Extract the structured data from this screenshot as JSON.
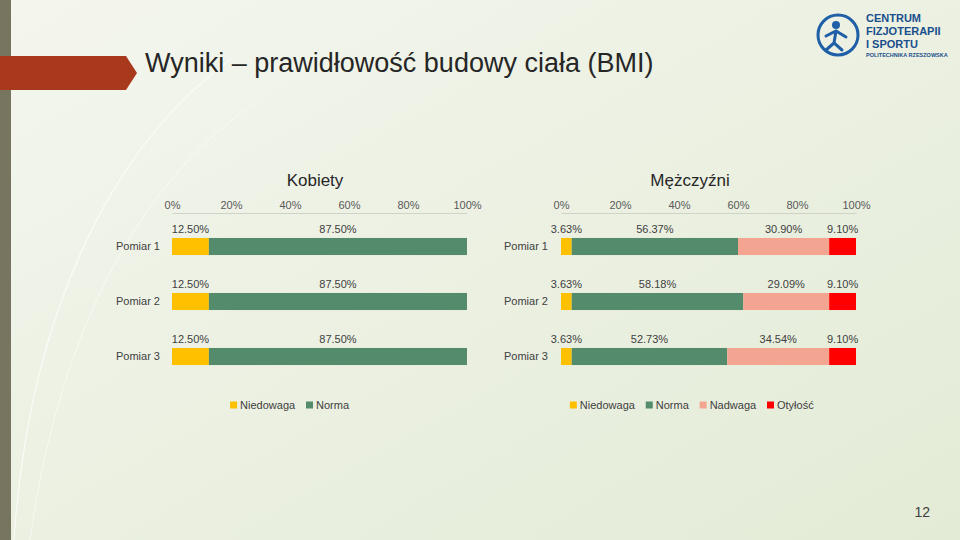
{
  "header": {
    "title": "Wyniki – prawidłowość budowy ciała (BMI)",
    "logo_lines": [
      "CENTRUM",
      "FIZJOTERAPII",
      "I SPORTU"
    ],
    "logo_subtitle": "POLITECHNIKA RZESZOWSKA"
  },
  "footer": {
    "page_number": "12"
  },
  "chart_data": [
    {
      "type": "bar",
      "title": "Kobiety",
      "orientation": "horizontal",
      "stacked": true,
      "data_labels": true,
      "legend": "bottom",
      "grid": false,
      "categories": [
        "Pomiar 1",
        "Pomiar 2",
        "Pomiar 3"
      ],
      "xlim": [
        0,
        100
      ],
      "xticks": [
        {
          "value": 0,
          "label": "0%"
        },
        {
          "value": 20,
          "label": "20%"
        },
        {
          "value": 40,
          "label": "40%"
        },
        {
          "value": 60,
          "label": "60%"
        },
        {
          "value": 80,
          "label": "80%"
        },
        {
          "value": 100,
          "label": "100%"
        }
      ],
      "series": [
        {
          "name": "Niedowaga",
          "color": "#ffc000",
          "values": [
            12.5,
            12.5,
            12.5
          ],
          "value_labels": [
            "12.50%",
            "12.50%",
            "12.50%"
          ]
        },
        {
          "name": "Norma",
          "color": "#548b6c",
          "values": [
            87.5,
            87.5,
            87.5
          ],
          "value_labels": [
            "87.50%",
            "87.50%",
            "87.50%"
          ]
        }
      ]
    },
    {
      "type": "bar",
      "title": "Mężczyźni",
      "orientation": "horizontal",
      "stacked": true,
      "data_labels": true,
      "legend": "bottom",
      "grid": false,
      "categories": [
        "Pomiar 1",
        "Pomiar 2",
        "Pomiar 3"
      ],
      "xlim": [
        0,
        100
      ],
      "xticks": [
        {
          "value": 0,
          "label": "0%"
        },
        {
          "value": 20,
          "label": "20%"
        },
        {
          "value": 40,
          "label": "40%"
        },
        {
          "value": 60,
          "label": "60%"
        },
        {
          "value": 80,
          "label": "80%"
        },
        {
          "value": 100,
          "label": "100%"
        }
      ],
      "series": [
        {
          "name": "Niedowaga",
          "color": "#ffc000",
          "values": [
            3.63,
            3.63,
            3.63
          ],
          "value_labels": [
            "3.63%",
            "3.63%",
            "3.63%"
          ]
        },
        {
          "name": "Norma",
          "color": "#548b6c",
          "values": [
            56.37,
            58.18,
            52.73
          ],
          "value_labels": [
            "56.37%",
            "58.18%",
            "52.73%"
          ]
        },
        {
          "name": "Nadwaga",
          "color": "#f4a592",
          "values": [
            30.9,
            29.09,
            34.54
          ],
          "value_labels": [
            "30.90%",
            "29.09%",
            "34.54%"
          ]
        },
        {
          "name": "Otyłość",
          "color": "#ff0000",
          "values": [
            9.1,
            9.1,
            9.1
          ],
          "value_labels": [
            "9.10%",
            "9.10%",
            "9.10%"
          ]
        }
      ]
    }
  ]
}
